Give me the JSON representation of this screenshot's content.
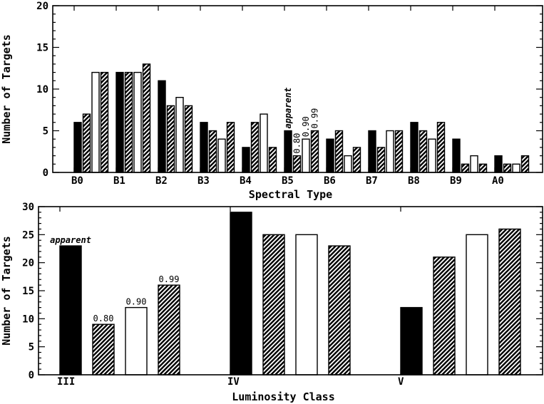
{
  "chart_data": [
    {
      "type": "bar",
      "title": "",
      "xlabel": "Spectral Type",
      "ylabel": "Number of Targets",
      "ylim": [
        0,
        20
      ],
      "yticks": [
        0,
        5,
        10,
        15,
        20
      ],
      "grid": false,
      "categories": [
        "B0",
        "B1",
        "B2",
        "B3",
        "B4",
        "B5",
        "B6",
        "B7",
        "B8",
        "B9",
        "A0"
      ],
      "series": [
        {
          "name": "apparent",
          "style": "solid",
          "values": [
            6,
            12,
            11,
            6,
            3,
            5,
            4,
            5,
            6,
            4,
            2
          ]
        },
        {
          "name": "0.80",
          "style": "hatched",
          "values": [
            7,
            12,
            8,
            5,
            6,
            2,
            5,
            3,
            5,
            1,
            1
          ]
        },
        {
          "name": "0.90",
          "style": "open",
          "values": [
            12,
            12,
            9,
            4,
            7,
            4,
            2,
            5,
            4,
            2,
            1
          ]
        },
        {
          "name": "0.99",
          "style": "hatched",
          "values": [
            12,
            13,
            8,
            6,
            3,
            5,
            3,
            5,
            6,
            1,
            2
          ]
        }
      ],
      "annotations": [
        {
          "text": "apparent",
          "category": "B5",
          "series": "apparent",
          "orientation": "vertical",
          "italic": true
        },
        {
          "text": "0.80",
          "category": "B5",
          "series": "0.80",
          "orientation": "vertical"
        },
        {
          "text": "0.90",
          "category": "B5",
          "series": "0.90",
          "orientation": "vertical"
        },
        {
          "text": "0.99",
          "category": "B5",
          "series": "0.99",
          "orientation": "vertical"
        }
      ]
    },
    {
      "type": "bar",
      "title": "",
      "xlabel": "Luminosity Class",
      "ylabel": "Number of Targets",
      "ylim": [
        0,
        30
      ],
      "yticks": [
        0,
        5,
        10,
        15,
        20,
        25,
        30
      ],
      "grid": false,
      "categories": [
        "III",
        "IV",
        "V"
      ],
      "series": [
        {
          "name": "apparent",
          "style": "solid",
          "values": [
            23,
            29,
            12
          ]
        },
        {
          "name": "0.80",
          "style": "hatched",
          "values": [
            9,
            25,
            21
          ]
        },
        {
          "name": "0.90",
          "style": "open",
          "values": [
            12,
            25,
            25
          ]
        },
        {
          "name": "0.99",
          "style": "hatched",
          "values": [
            16,
            23,
            26
          ]
        }
      ],
      "annotations": [
        {
          "text": "apparent",
          "category": "III",
          "series": "apparent",
          "orientation": "horizontal",
          "italic": true
        },
        {
          "text": "0.80",
          "category": "III",
          "series": "0.80",
          "orientation": "horizontal"
        },
        {
          "text": "0.90",
          "category": "III",
          "series": "0.90",
          "orientation": "horizontal"
        },
        {
          "text": "0.99",
          "category": "III",
          "series": "0.99",
          "orientation": "horizontal"
        }
      ]
    }
  ]
}
